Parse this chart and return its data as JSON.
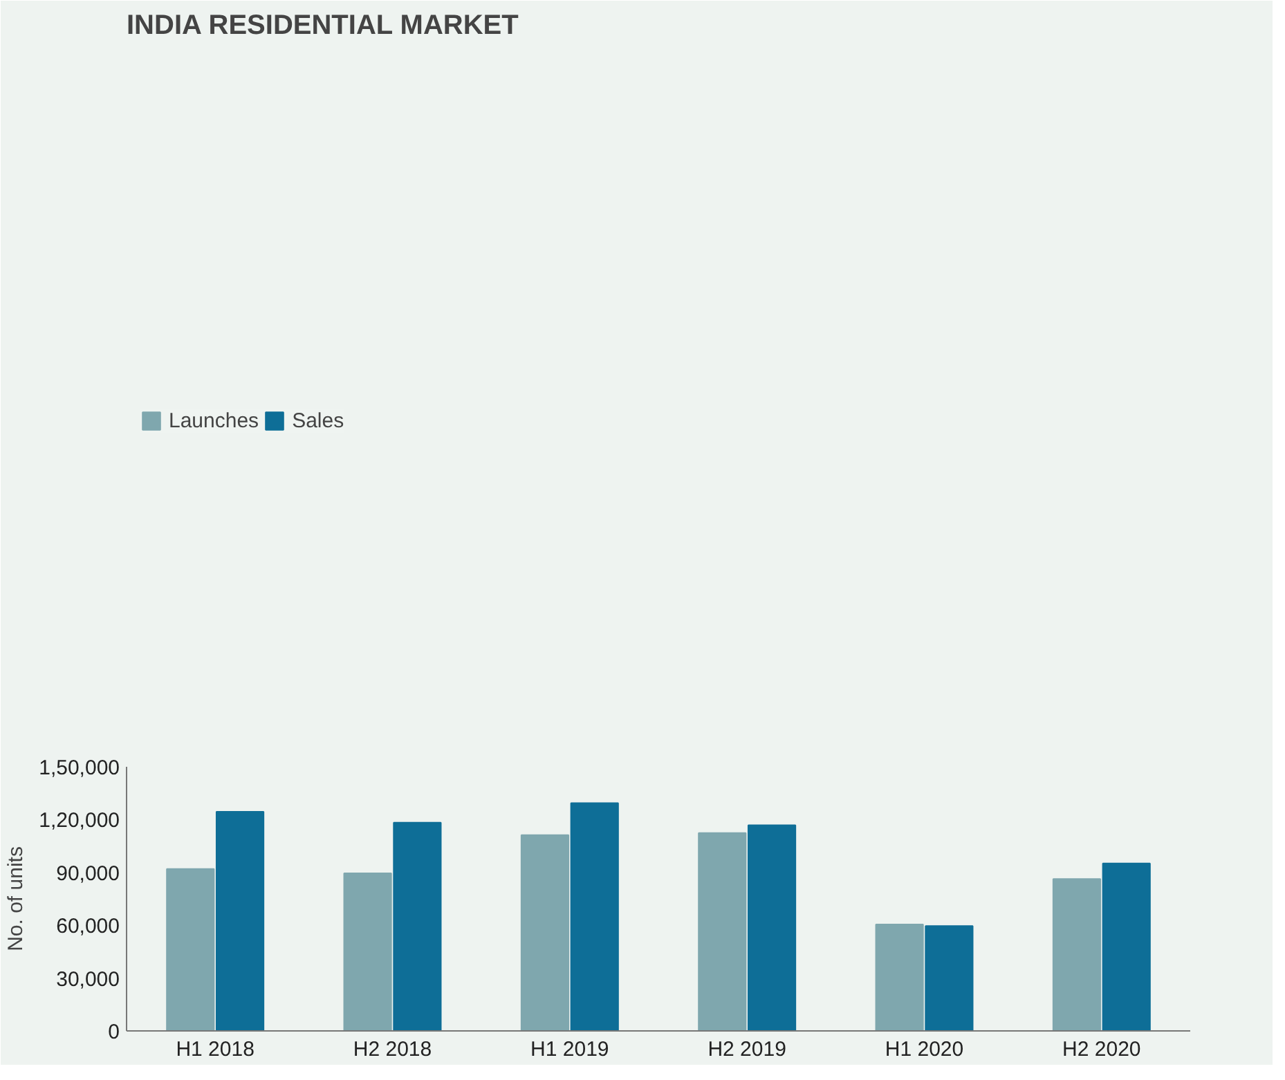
{
  "chart_data": {
    "type": "bar",
    "title": "INDIA RESIDENTIAL MARKET",
    "ylabel": "No. of units",
    "categories": [
      "H1 2018",
      "H2 2018",
      "H1 2019",
      "H2 2019",
      "H1 2020",
      "H2 2020"
    ],
    "series": [
      {
        "name": "Launches",
        "color": "#7fa7ae",
        "values": [
          92000,
          89500,
          111200,
          112400,
          60500,
          86300
        ]
      },
      {
        "name": "Sales",
        "color": "#0e6e97",
        "values": [
          124500,
          118300,
          129400,
          116800,
          59600,
          95100
        ]
      }
    ],
    "ylim": [
      0,
      150000
    ],
    "yticks": [
      0,
      {
        "value": 30000,
        "label": "30,000"
      },
      {
        "value": 60000,
        "label": "60,000"
      },
      {
        "value": 90000,
        "label": "90,000"
      },
      {
        "value": 120000,
        "label": "1,20,000"
      },
      {
        "value": 150000,
        "label": "1,50,000"
      }
    ],
    "grid": false,
    "legend": "top left"
  }
}
